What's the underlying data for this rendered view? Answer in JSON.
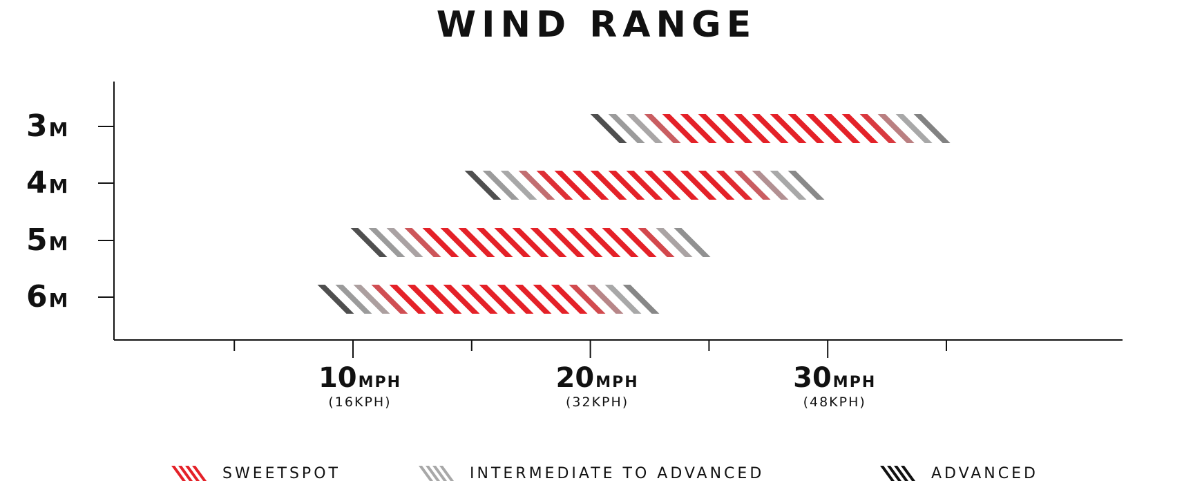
{
  "title": "WIND RANGE",
  "chart_data": {
    "type": "bar",
    "orientation": "horizontal-range",
    "title": "WIND RANGE",
    "categories": [
      "3M",
      "4M",
      "5M",
      "6M"
    ],
    "category_labels": [
      {
        "number": "3",
        "unit": "M"
      },
      {
        "number": "4",
        "unit": "M"
      },
      {
        "number": "5",
        "unit": "M"
      },
      {
        "number": "6",
        "unit": "M"
      }
    ],
    "x_unit": "mph",
    "xlim": [
      0,
      42.5
    ],
    "major_ticks": [
      10,
      20,
      30
    ],
    "minor_ticks": [
      5,
      15,
      25,
      35
    ],
    "tick_labels": [
      {
        "value": 10,
        "main": "10",
        "unit": "MPH",
        "sub": "(16KPH)"
      },
      {
        "value": 20,
        "main": "20",
        "unit": "MPH",
        "sub": "(32KPH)"
      },
      {
        "value": 30,
        "main": "30",
        "unit": "MPH",
        "sub": "(48KPH)"
      }
    ],
    "ranges": [
      {
        "category": "3M",
        "advanced_low": [
          20,
          21.5
        ],
        "intermediate_low": [
          21.5,
          23.5
        ],
        "sweetspot": [
          23.5,
          31.7
        ],
        "intermediate_high": [
          31.7,
          33.8
        ],
        "advanced_high": [
          33.8,
          35.5
        ]
      },
      {
        "category": "4M",
        "advanced_low": [
          14.7,
          16.2
        ],
        "intermediate_low": [
          16.2,
          18.5
        ],
        "sweetspot": [
          18.5,
          25.8
        ],
        "intermediate_high": [
          25.8,
          28.6
        ],
        "advanced_high": [
          28.6,
          30.2
        ]
      },
      {
        "category": "5M",
        "advanced_low": [
          9.9,
          11.4
        ],
        "intermediate_low": [
          11.4,
          13.3
        ],
        "sweetspot": [
          13.3,
          22.3
        ],
        "intermediate_high": [
          22.3,
          23.9
        ],
        "advanced_high": [
          23.9,
          25.4
        ]
      },
      {
        "category": "6M",
        "advanced_low": [
          8.5,
          10.0
        ],
        "intermediate_low": [
          10.0,
          11.8
        ],
        "sweetspot": [
          11.8,
          19.2
        ],
        "intermediate_high": [
          19.2,
          21.6
        ],
        "advanced_high": [
          21.6,
          23.3
        ]
      }
    ],
    "legend": [
      {
        "key": "sweetspot",
        "label": "SWEETSPOT",
        "color": "#e42128"
      },
      {
        "key": "intermediate",
        "label": "INTERMEDIATE TO ADVANCED",
        "color": "#a8a8a8"
      },
      {
        "key": "advanced",
        "label": "ADVANCED",
        "color": "#111111"
      }
    ],
    "legend_position": "bottom",
    "grid": false
  }
}
